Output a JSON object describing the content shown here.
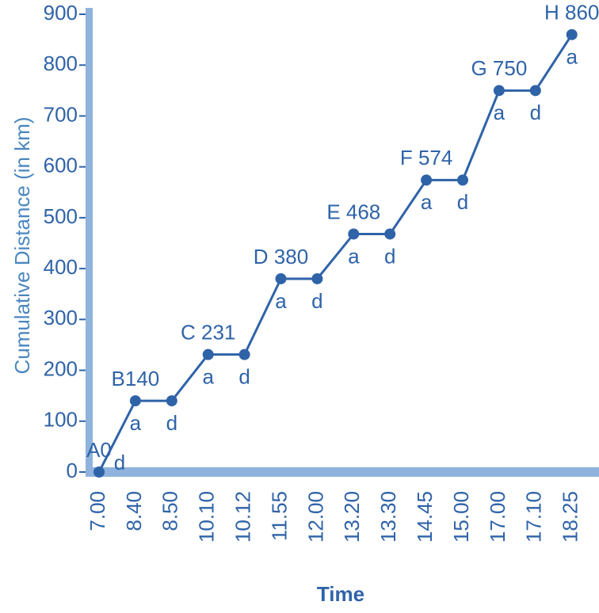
{
  "chart_data": {
    "type": "line",
    "x_label": "Time",
    "y_label": "Cumulative  Distance (in km)",
    "categories": [
      "7.00",
      "8.40",
      "8.50",
      "10.10",
      "10.12",
      "11.55",
      "12.00",
      "13.20",
      "13.30",
      "14.45",
      "15.00",
      "17.00",
      "17.10",
      "18.25"
    ],
    "values": [
      0,
      140,
      140,
      231,
      231,
      380,
      380,
      468,
      468,
      574,
      574,
      750,
      750,
      860
    ],
    "point_labels": [
      "A0",
      "B140",
      null,
      "C 231",
      null,
      "D 380",
      null,
      "E 468",
      null,
      "F 574",
      null,
      "G 750",
      null,
      "H 860"
    ],
    "point_marks": [
      "d",
      "a",
      "d",
      "a",
      "d",
      "a",
      "d",
      "a",
      "d",
      "a",
      "d",
      "a",
      "d",
      "a"
    ],
    "color": "#2f63a8",
    "ylim": [
      0,
      900
    ],
    "yticks": [
      0,
      100,
      200,
      300,
      400,
      500,
      600,
      700,
      800,
      900
    ]
  }
}
